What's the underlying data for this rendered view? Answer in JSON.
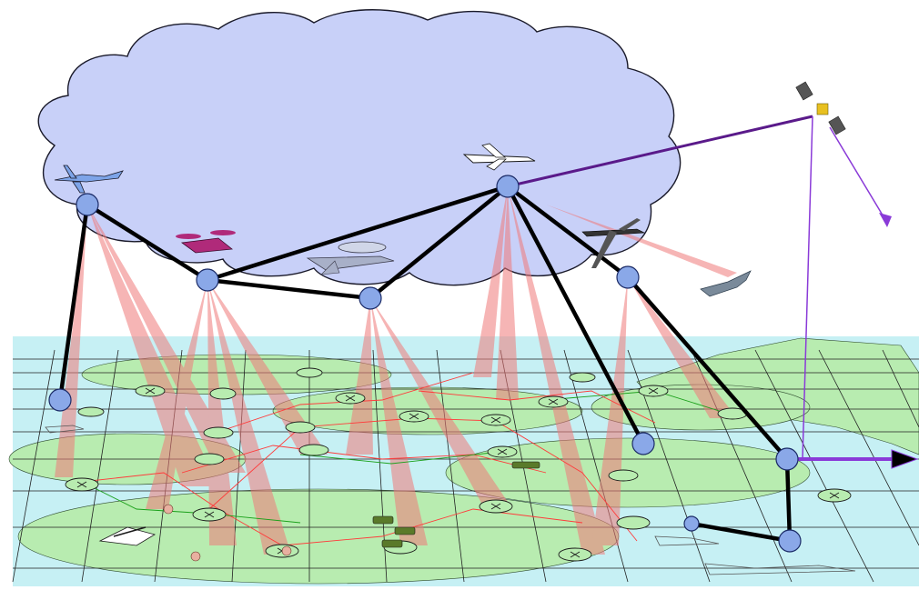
{
  "diagram": {
    "elements": {
      "cloud": "airborne-layer-cloud",
      "ground": "terrain-grid",
      "sea": "ocean-band"
    },
    "colors": {
      "cloud_fill": "#c8d0f8",
      "cloud_stroke": "#1a1a2a",
      "sea": "#c6f0f4",
      "land": "#b8ecb0",
      "land_stroke": "#2e4a2e",
      "grid": "#222222",
      "node": "#8aa8e8",
      "node_stroke": "#1a2a66",
      "link": "#000000",
      "beam": "#f07a7a",
      "satellite_link": "#8a3ad8",
      "ground_link": "#ff3a3a",
      "sensor_link": "#1aa01a"
    },
    "icons": [
      "uav-icon",
      "tiltrotor-icon",
      "awacs-icon",
      "airliner-icon",
      "jet-icon",
      "fighter-icon",
      "satellite-icon",
      "tank-icon",
      "ship-icon",
      "radar-icon",
      "sensor-icon"
    ]
  }
}
